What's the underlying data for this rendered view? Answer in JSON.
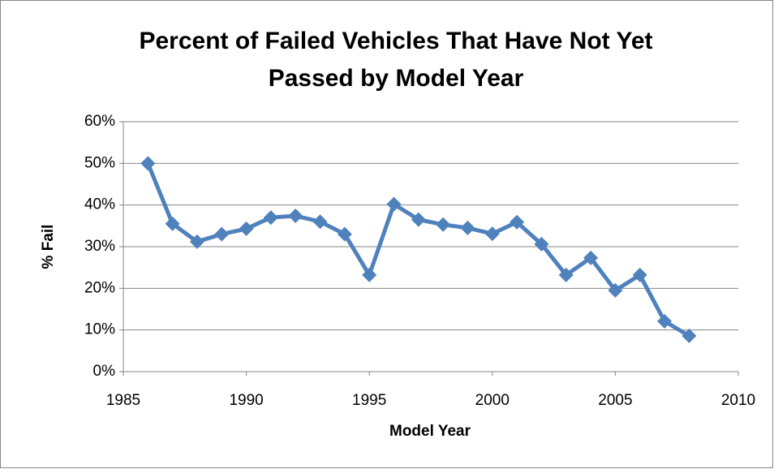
{
  "chart_data": {
    "type": "line",
    "title": [
      "Percent of Failed Vehicles That Have Not Yet",
      "Passed by Model Year"
    ],
    "x_label": "Model Year",
    "y_label": "% Fail",
    "x": [
      1986,
      1987,
      1988,
      1989,
      1990,
      1991,
      1992,
      1993,
      1994,
      1995,
      1996,
      1997,
      1998,
      1999,
      2000,
      2001,
      2002,
      2003,
      2004,
      2005,
      2006,
      2007,
      2008
    ],
    "series": [
      {
        "name": "% Fail",
        "color": "#4f81bd",
        "values": [
          50,
          35.5,
          31.2,
          33,
          34.3,
          37,
          37.4,
          36,
          33,
          23.2,
          40.2,
          36.5,
          35.3,
          34.5,
          33.1,
          35.9,
          30.6,
          23.2,
          27.3,
          19.5,
          23.2,
          12.1,
          8.6
        ]
      }
    ],
    "xlim": [
      1985,
      2010
    ],
    "xticks": [
      1985,
      1990,
      1995,
      2000,
      2005,
      2010
    ],
    "ylim": [
      0,
      60
    ],
    "yticks": [
      {
        "value": 0,
        "label": "0%"
      },
      {
        "value": 10,
        "label": "10%"
      },
      {
        "value": 20,
        "label": "20%"
      },
      {
        "value": 30,
        "label": "30%"
      },
      {
        "value": 40,
        "label": "40%"
      },
      {
        "value": 50,
        "label": "50%"
      },
      {
        "value": 60,
        "label": "60%"
      }
    ],
    "grid": true,
    "marker": "diamond"
  }
}
